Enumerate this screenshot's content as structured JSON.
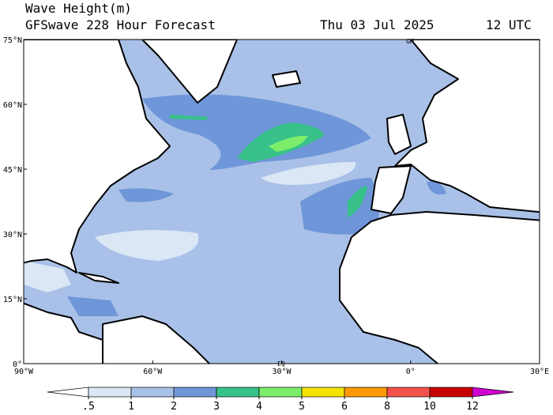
{
  "header": {
    "title": "Wave Height(m)",
    "subtitle": "GFSwave 228 Hour Forecast",
    "date": "Thu 03 Jul 2025",
    "time": "12 UTC"
  },
  "map": {
    "lat_labels": [
      "75°N",
      "60°N",
      "45°N",
      "30°N",
      "15°N",
      "0°"
    ],
    "lon_labels": [
      "90°W",
      "60°W",
      "30°W",
      "0°",
      "30°E"
    ],
    "markers": [
      "GM",
      "EQ"
    ]
  },
  "legend": {
    "levels": [
      {
        "value": 0.5,
        "label": ".5"
      },
      1,
      2,
      3,
      4,
      5,
      6,
      8,
      10,
      12
    ],
    "colors": [
      "#ffffff",
      "#dbe7f5",
      "#a9c1e8",
      "#6e96d8",
      "#38c28a",
      "#7cee6c",
      "#f4e400",
      "#ff9a00",
      "#f4524c",
      "#c80000",
      "#d000d0"
    ]
  }
}
